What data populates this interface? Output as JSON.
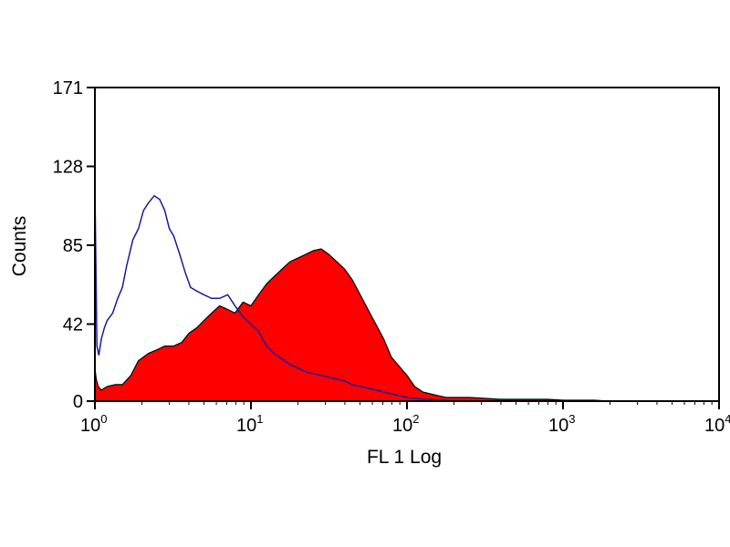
{
  "chart_data": {
    "type": "area",
    "title": "",
    "xlabel": "FL 1 Log",
    "ylabel": "Counts",
    "xscale": "log",
    "xlim": [
      1,
      10000
    ],
    "ylim": [
      0,
      171
    ],
    "y_ticks": [
      {
        "value": 0,
        "label": "0"
      },
      {
        "value": 42,
        "label": "42"
      },
      {
        "value": 85,
        "label": "85"
      },
      {
        "value": 128,
        "label": "128"
      },
      {
        "value": 171,
        "label": "171"
      }
    ],
    "x_ticks": [
      {
        "value": 1,
        "base": "10",
        "exp": "0"
      },
      {
        "value": 10,
        "base": "10",
        "exp": "1"
      },
      {
        "value": 100,
        "base": "10",
        "exp": "2"
      },
      {
        "value": 1000,
        "base": "10",
        "exp": "3"
      },
      {
        "value": 10000,
        "base": "10",
        "exp": "4"
      }
    ],
    "grid": false,
    "legend": "none",
    "series": [
      {
        "style": "filled",
        "color": "#ff0000",
        "x": [
          1.0,
          1.02,
          1.05,
          1.1,
          1.2,
          1.35,
          1.5,
          1.7,
          1.9,
          2.2,
          2.5,
          2.8,
          3.2,
          3.6,
          4.0,
          4.5,
          5.0,
          5.6,
          6.3,
          7.1,
          7.9,
          8.9,
          10.0,
          11.2,
          12.6,
          14.1,
          15.8,
          17.8,
          20.0,
          22.4,
          25.1,
          28.2,
          31.6,
          35.5,
          39.8,
          44.7,
          50.1,
          56.2,
          63.1,
          70.8,
          79.4,
          89.1,
          100,
          112,
          126,
          141,
          158,
          178,
          200,
          251,
          316,
          398,
          501,
          631,
          794,
          1000,
          1259,
          1585,
          1995
        ],
        "y": [
          18,
          12,
          8,
          6,
          8,
          9,
          9,
          14,
          22,
          26,
          28,
          30,
          30,
          32,
          37,
          40,
          44,
          48,
          52,
          50,
          48,
          54,
          52,
          58,
          64,
          68,
          72,
          76,
          78,
          80,
          82,
          83,
          80,
          76,
          72,
          66,
          58,
          50,
          42,
          34,
          24,
          19,
          14,
          8,
          5,
          4,
          3,
          2,
          2,
          2,
          1.5,
          1,
          1,
          1,
          1,
          0.5,
          0.5,
          0.5,
          0
        ]
      },
      {
        "style": "outline",
        "color": "#1a1a99",
        "x": [
          1.0,
          1.03,
          1.06,
          1.1,
          1.15,
          1.2,
          1.3,
          1.4,
          1.5,
          1.6,
          1.75,
          1.9,
          2.05,
          2.2,
          2.4,
          2.6,
          2.8,
          3.0,
          3.2,
          3.5,
          3.8,
          4.1,
          4.5,
          5.0,
          5.6,
          6.3,
          7.1,
          7.9,
          8.9,
          10.0,
          11.2,
          12.6,
          14.1,
          15.8,
          17.8,
          20.0,
          22.4,
          25.1,
          28.2,
          31.6,
          35.5,
          39.8,
          44.7,
          50.1,
          56.2,
          63.1,
          70.8,
          79.4,
          89.1,
          100,
          112,
          126,
          141,
          158,
          178,
          200
        ],
        "y": [
          118,
          30,
          25,
          34,
          40,
          44,
          48,
          56,
          62,
          74,
          88,
          94,
          104,
          108,
          112,
          110,
          104,
          94,
          90,
          80,
          70,
          62,
          60,
          58,
          56,
          56,
          58,
          52,
          46,
          42,
          38,
          30,
          26,
          23,
          20,
          18,
          16,
          15,
          14,
          13,
          12,
          11,
          9,
          8,
          7,
          6,
          5,
          4,
          3,
          2,
          1.5,
          1,
          1,
          0.5,
          0.5,
          0
        ]
      }
    ]
  }
}
